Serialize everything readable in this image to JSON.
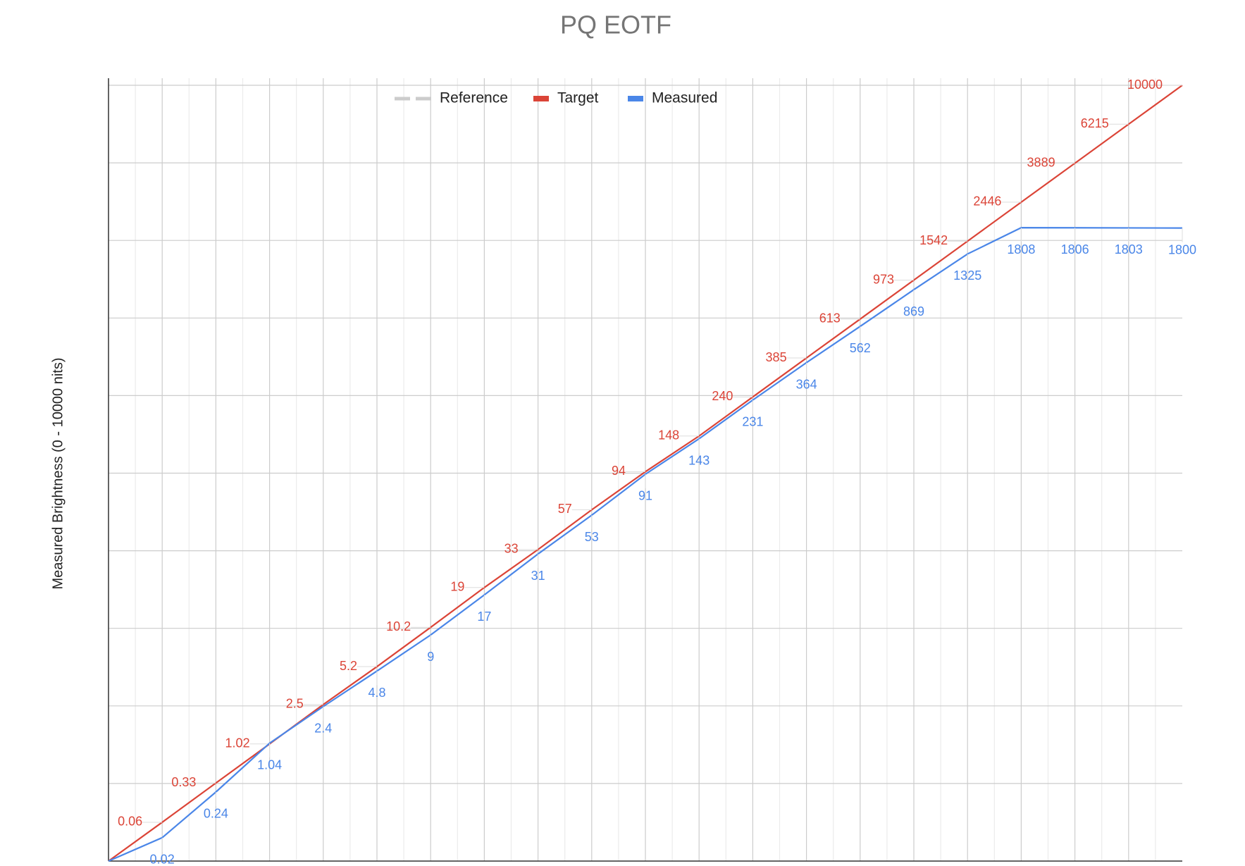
{
  "chart_data": {
    "type": "line",
    "title": "PQ EOTF",
    "y_label": "Measured Brightness  (0 - 10000 nits)",
    "yscale": "pq",
    "ylim": [
      0,
      10000
    ],
    "grid": true,
    "series": [
      {
        "name": "Reference",
        "color": "#cccccc",
        "legend_dashed": true
      },
      {
        "name": "Target",
        "color": "#db4437",
        "values": [
          0,
          0.06,
          0.33,
          1.02,
          2.5,
          5.2,
          10.2,
          19,
          33,
          57,
          94,
          148,
          240,
          385,
          613,
          973,
          1542,
          2446,
          3889,
          6215,
          10000
        ],
        "value_labels": [
          null,
          "0.06",
          "0.33",
          "1.02",
          "2.5",
          "5.2",
          "10.2",
          "19",
          "33",
          "57",
          "94",
          "148",
          "240",
          "385",
          "613",
          "973",
          "1542",
          "2446",
          "3889",
          "6215",
          "10000"
        ]
      },
      {
        "name": "Measured",
        "color": "#4a86e8",
        "values": [
          0,
          0.02,
          0.24,
          1.04,
          2.4,
          4.8,
          9,
          17,
          31,
          53,
          91,
          143,
          231,
          364,
          562,
          869,
          1325,
          1808,
          1806,
          1803,
          1800
        ],
        "value_labels": [
          null,
          "0.02",
          "0.24",
          "1.04",
          "2.4",
          "4.8",
          "9",
          "17",
          "31",
          "53",
          "91",
          "143",
          "231",
          "364",
          "562",
          "869",
          "1325",
          "1808",
          "1806",
          "1803",
          "1800"
        ]
      }
    ]
  }
}
